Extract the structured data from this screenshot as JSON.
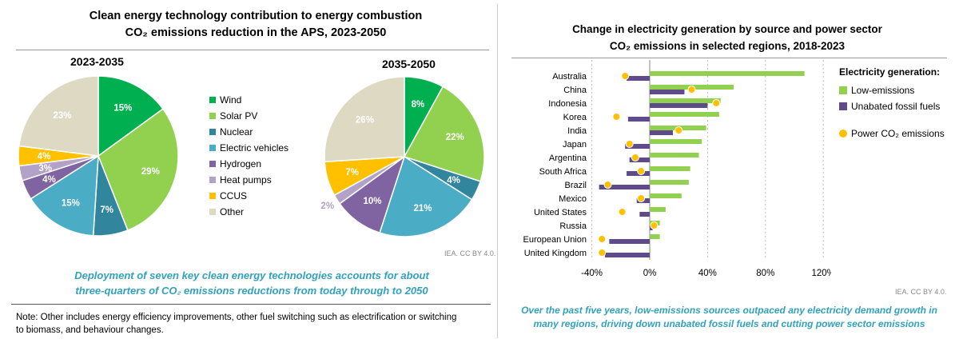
{
  "left": {
    "title_line1": "Clean energy technology contribution to energy combustion",
    "title_line2": "CO₂ emissions reduction in the APS, 2023-2050",
    "source": "IEA. CC BY 4.0.",
    "caption_line1": "Deployment of seven key clean energy technologies accounts for about",
    "caption_line2": "three-quarters of CO₂ emissions reductions from today through to 2050",
    "note_line1": "Note: Other includes energy efficiency improvements, other fuel switching such as electrification or switching",
    "note_line2": "to biomass, and behaviour changes."
  },
  "right": {
    "title_line1": "Change in electricity generation by source and power sector",
    "title_line2": "CO₂ emissions in selected regions, 2018-2023",
    "source": "IEA. CC BY 4.0.",
    "caption_line1": "Over the past five years, low-emissions sources outpaced any electricity demand growth in",
    "caption_line2": "many regions, driving down unabated fossil fuels and cutting power sector emissions"
  },
  "chart_data": [
    {
      "type": "pie",
      "title": "2023-2035",
      "categories": [
        "Wind",
        "Solar PV",
        "Nuclear",
        "Electric vehicles",
        "Hydrogen",
        "Heat pumps",
        "CCUS",
        "Other"
      ],
      "values": [
        15,
        29,
        7,
        15,
        4,
        3,
        4,
        23
      ],
      "labels": [
        "15%",
        "29%",
        "7%",
        "15%",
        "4%",
        "3%",
        "4%",
        "23%"
      ],
      "colors": [
        "#00b050",
        "#92d050",
        "#31859c",
        "#4bacc6",
        "#8064a2",
        "#b3a2c7",
        "#ffc000",
        "#ddd9c3"
      ]
    },
    {
      "type": "pie",
      "title": "2035-2050",
      "categories": [
        "Wind",
        "Solar PV",
        "Nuclear",
        "Electric vehicles",
        "Hydrogen",
        "Heat pumps",
        "CCUS",
        "Other"
      ],
      "values": [
        8,
        22,
        4,
        21,
        10,
        2,
        7,
        26
      ],
      "labels": [
        "8%",
        "22%",
        "4%",
        "21%",
        "10%",
        "2%",
        "7%",
        "26%"
      ],
      "colors": [
        "#00b050",
        "#92d050",
        "#31859c",
        "#4bacc6",
        "#8064a2",
        "#b3a2c7",
        "#ffc000",
        "#ddd9c3"
      ]
    },
    {
      "type": "bar",
      "orientation": "horizontal",
      "categories": [
        "Australia",
        "China",
        "Indonesia",
        "Korea",
        "India",
        "Japan",
        "Argentina",
        "South Africa",
        "Brazil",
        "Mexico",
        "United States",
        "Russia",
        "European Union",
        "United Kingdom"
      ],
      "series": [
        {
          "name": "Low-emissions",
          "color": "#92d050",
          "values": [
            107,
            58,
            49,
            48,
            39,
            36,
            34,
            28,
            27,
            22,
            11,
            7,
            7,
            0.5
          ]
        },
        {
          "name": "Unabated fossil fuels",
          "color": "#5f4b8b",
          "values": [
            -16,
            24,
            40,
            -15,
            16,
            -17,
            -14,
            -16,
            -35,
            -9,
            -7,
            2,
            -28,
            -31
          ]
        },
        {
          "name": "Power CO₂ emissions",
          "type": "scatter",
          "color": "#ffc000",
          "values": [
            -17,
            29,
            46,
            -23,
            20,
            -14,
            -10,
            -6,
            -29,
            -6,
            -19,
            3,
            -33,
            -33
          ]
        }
      ],
      "xlim": [
        -40,
        120
      ],
      "xticks": [
        "-40%",
        "0%",
        "40%",
        "80%",
        "120%"
      ],
      "xtick_values": [
        -40,
        0,
        40,
        80,
        120
      ],
      "legend_title": "Electricity generation:",
      "legend": "right"
    }
  ]
}
